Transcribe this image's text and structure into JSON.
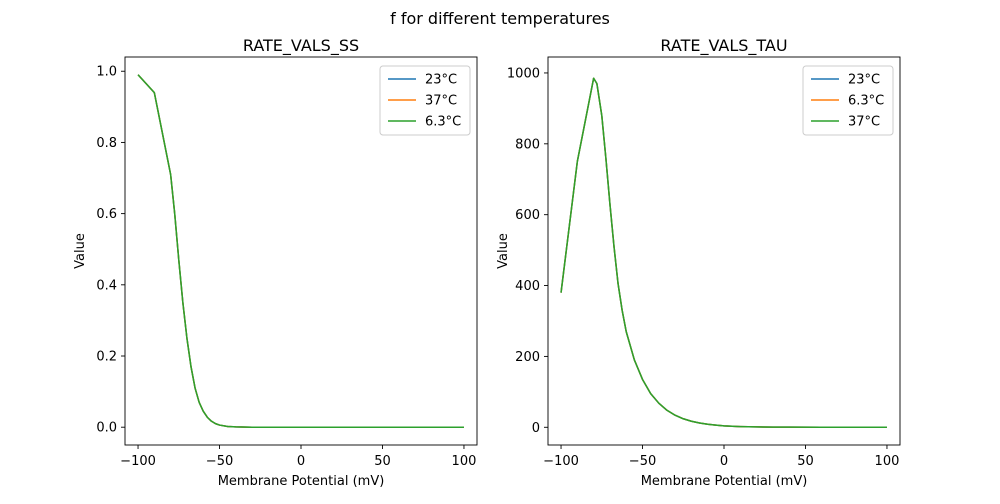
{
  "figure": {
    "suptitle": "f for different temperatures"
  },
  "chart_data": [
    {
      "type": "line",
      "title": "RATE_VALS_SS",
      "xlabel": "Membrane Potential (mV)",
      "ylabel": "Value",
      "xlim": [
        -108,
        108
      ],
      "ylim": [
        -0.05,
        1.04
      ],
      "xticks": [
        -100,
        -50,
        0,
        50,
        100
      ],
      "yticks": [
        0.0,
        0.2,
        0.4,
        0.6,
        0.8,
        1.0
      ],
      "ytick_labels": [
        "0.0",
        "0.2",
        "0.4",
        "0.6",
        "0.8",
        "1.0"
      ],
      "legend": "top-right",
      "grid": false,
      "x": [
        -100,
        -90,
        -80,
        -77.5,
        -75,
        -72.5,
        -70,
        -67.5,
        -65,
        -62.5,
        -60,
        -57.5,
        -55,
        -52.5,
        -50,
        -45,
        -40,
        -30,
        -20,
        -10,
        0,
        20,
        40,
        60,
        80,
        100
      ],
      "series": [
        {
          "name": "23°C",
          "color": "#1f77b4",
          "values": [
            0.99,
            0.94,
            0.71,
            0.6,
            0.47,
            0.35,
            0.25,
            0.17,
            0.11,
            0.07,
            0.045,
            0.028,
            0.017,
            0.01,
            0.006,
            0.002,
            0.001,
            0,
            0,
            0,
            0,
            0,
            0,
            0,
            0,
            0
          ]
        },
        {
          "name": "37°C",
          "color": "#ff7f0e",
          "values": [
            0.99,
            0.94,
            0.71,
            0.6,
            0.47,
            0.35,
            0.25,
            0.17,
            0.11,
            0.07,
            0.045,
            0.028,
            0.017,
            0.01,
            0.006,
            0.002,
            0.001,
            0,
            0,
            0,
            0,
            0,
            0,
            0,
            0,
            0
          ]
        },
        {
          "name": "6.3°C",
          "color": "#2ca02c",
          "values": [
            0.99,
            0.94,
            0.71,
            0.6,
            0.47,
            0.35,
            0.25,
            0.17,
            0.11,
            0.07,
            0.045,
            0.028,
            0.017,
            0.01,
            0.006,
            0.002,
            0.001,
            0,
            0,
            0,
            0,
            0,
            0,
            0,
            0,
            0
          ]
        }
      ]
    },
    {
      "type": "line",
      "title": "RATE_VALS_TAU",
      "xlabel": "Membrane Potential (mV)",
      "ylabel": "Value",
      "xlim": [
        -108,
        108
      ],
      "ylim": [
        -50,
        1045
      ],
      "xticks": [
        -100,
        -50,
        0,
        50,
        100
      ],
      "yticks": [
        0,
        200,
        400,
        600,
        800,
        1000
      ],
      "ytick_labels": [
        "0",
        "200",
        "400",
        "600",
        "800",
        "1000"
      ],
      "legend": "top-right",
      "grid": false,
      "x": [
        -100,
        -90,
        -80,
        -78,
        -75,
        -72.5,
        -70,
        -67.5,
        -65,
        -62.5,
        -60,
        -55,
        -50,
        -45,
        -40,
        -35,
        -30,
        -25,
        -20,
        -15,
        -10,
        -5,
        0,
        10,
        20,
        30,
        40,
        60,
        80,
        100
      ],
      "series": [
        {
          "name": "23°C",
          "color": "#1f77b4",
          "values": [
            380,
            750,
            985,
            970,
            880,
            760,
            630,
            510,
            405,
            330,
            270,
            190,
            135,
            95,
            68,
            48,
            34,
            24,
            17,
            12,
            8.5,
            6,
            4,
            2,
            1,
            0.5,
            0.3,
            0,
            0,
            0
          ]
        },
        {
          "name": "6.3°C",
          "color": "#ff7f0e",
          "values": [
            380,
            750,
            985,
            970,
            880,
            760,
            630,
            510,
            405,
            330,
            270,
            190,
            135,
            95,
            68,
            48,
            34,
            24,
            17,
            12,
            8.5,
            6,
            4,
            2,
            1,
            0.5,
            0.3,
            0,
            0,
            0
          ]
        },
        {
          "name": "37°C",
          "color": "#2ca02c",
          "values": [
            380,
            750,
            985,
            970,
            880,
            760,
            630,
            510,
            405,
            330,
            270,
            190,
            135,
            95,
            68,
            48,
            34,
            24,
            17,
            12,
            8.5,
            6,
            4,
            2,
            1,
            0.5,
            0.3,
            0,
            0,
            0
          ]
        }
      ]
    }
  ]
}
